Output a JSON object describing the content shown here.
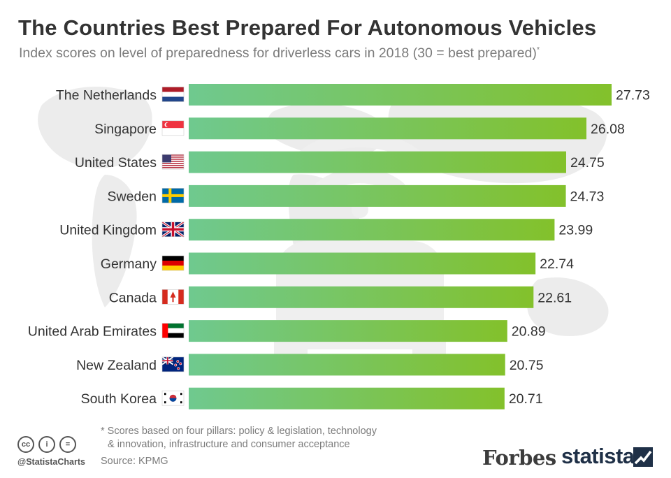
{
  "title": "The Countries Best Prepared For Autonomous Vehicles",
  "subtitle": "Index scores on level of preparedness for driverless cars in 2018 (30 = best prepared)",
  "subtitle_mark": "*",
  "footnote": {
    "line1": "* Scores based on four pillars: policy & legislation, technology",
    "line2": "& innovation, infrastructure and consumer acceptance"
  },
  "source": "Source: KPMG",
  "handle": "@StatistaCharts",
  "cc_icons": [
    "cc",
    "i",
    "="
  ],
  "brands": {
    "forbes": "Forbes",
    "statista": "statista"
  },
  "colors": {
    "bar_start": "#6fc98f",
    "bar_end": "#83c12b",
    "title": "#333333",
    "muted": "#7b7b7b"
  },
  "chart_data": {
    "type": "bar",
    "orientation": "horizontal",
    "categories": [
      "The Netherlands",
      "Singapore",
      "United States",
      "Sweden",
      "United Kingdom",
      "Germany",
      "Canada",
      "United Arab Emirates",
      "New Zealand",
      "South Korea"
    ],
    "flags": [
      "nl",
      "sg",
      "us",
      "se",
      "gb",
      "de",
      "ca",
      "ae",
      "nz",
      "kr"
    ],
    "values": [
      27.73,
      26.08,
      24.75,
      24.73,
      23.99,
      22.74,
      22.61,
      20.89,
      20.75,
      20.71
    ],
    "labels": [
      "27.73",
      "26.08",
      "24.75",
      "24.73",
      "23.99",
      "22.74",
      "22.61",
      "20.89",
      "20.75",
      "20.71"
    ],
    "xlim": [
      0,
      27.73
    ],
    "grid": false,
    "legend": "none"
  }
}
